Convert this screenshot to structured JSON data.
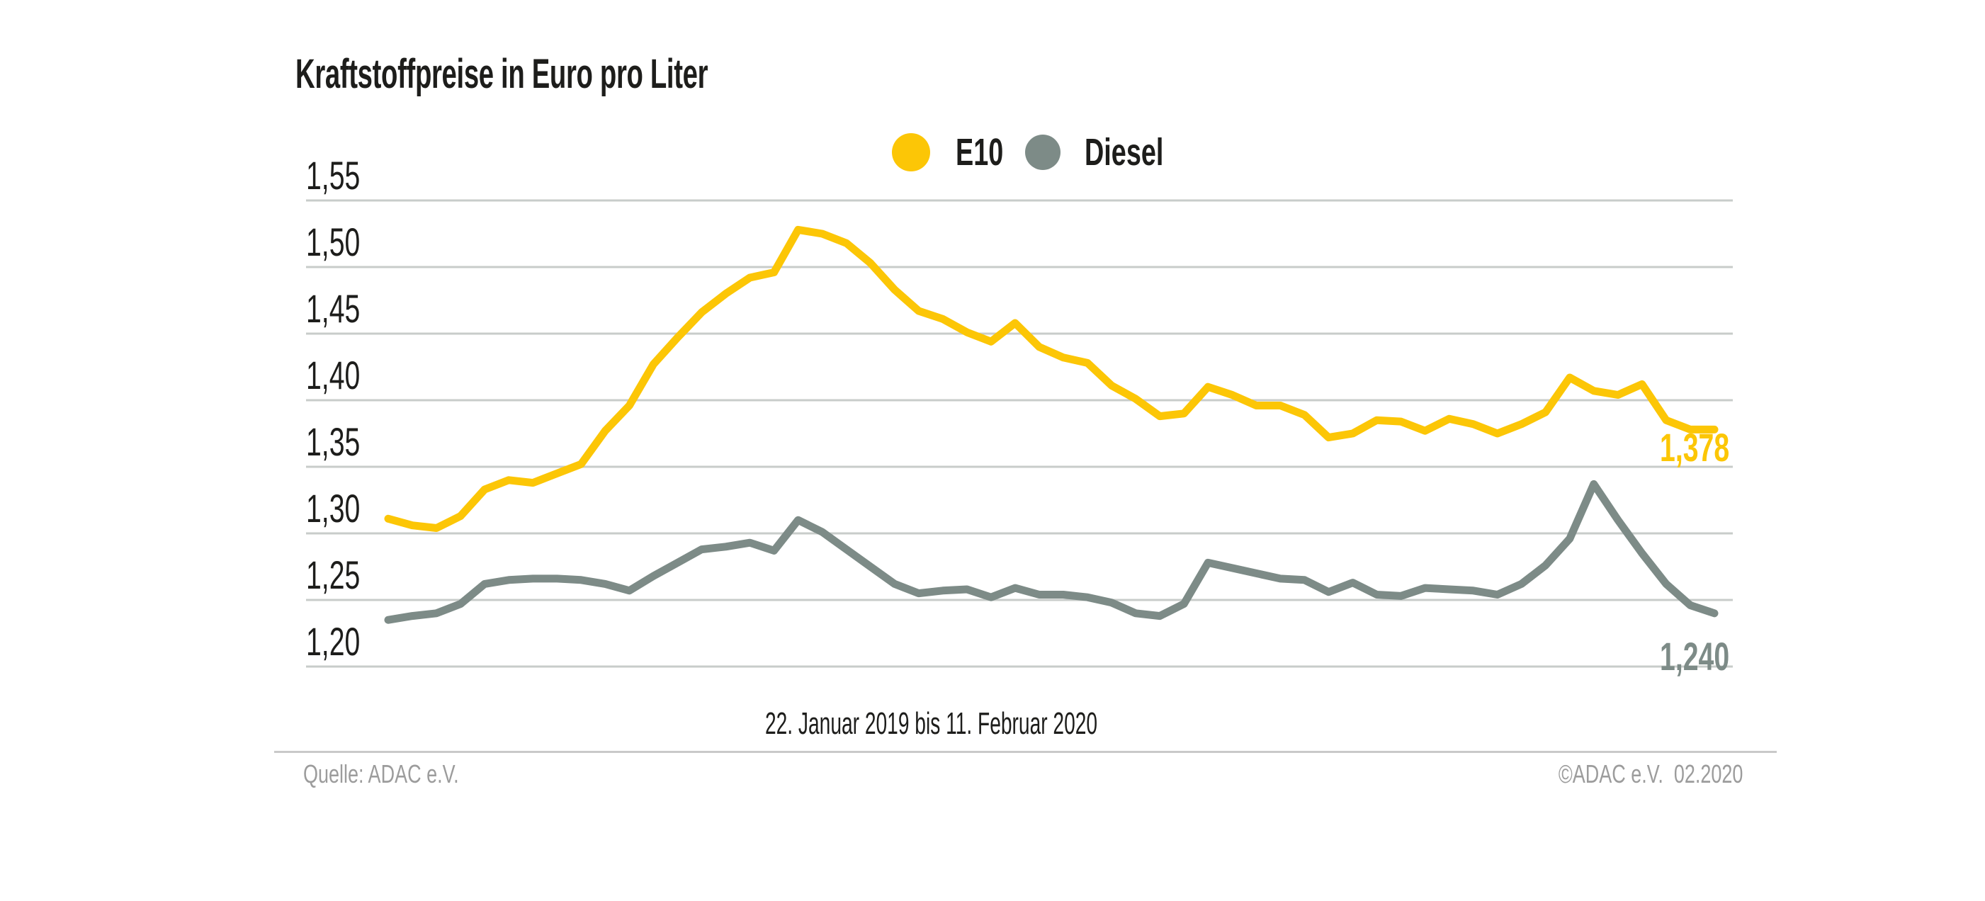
{
  "title": "Kraftstoffpreise in Euro pro Liter",
  "chart_data": {
    "type": "line",
    "title": "Kraftstoffpreise in Euro pro Liter",
    "x_caption": "22. Januar 2019 bis 11. Februar 2020",
    "x_interval": "weekly",
    "ylabel": "Euro pro Liter",
    "ylim": [
      1.185,
      1.57
    ],
    "y_ticks": [
      "1,55",
      "1,50",
      "1,45",
      "1,40",
      "1,35",
      "1,30",
      "1,25",
      "1,20"
    ],
    "y_tick_values": [
      1.55,
      1.5,
      1.45,
      1.4,
      1.35,
      1.3,
      1.25,
      1.2
    ],
    "grid": true,
    "legend_position": "top-center",
    "colors": {
      "e10": "#FCC606",
      "diesel": "#7D8B87",
      "gridline": "#C8CCCA",
      "text": "#1D1D1B",
      "footer_text": "#9C9C9C"
    },
    "series": [
      {
        "name": "E10",
        "color": "#FCC606",
        "end_label": "1,378",
        "end_value": 1.378,
        "values": [
          1.311,
          1.306,
          1.304,
          1.313,
          1.333,
          1.34,
          1.338,
          1.345,
          1.352,
          1.377,
          1.396,
          1.427,
          1.447,
          1.466,
          1.48,
          1.492,
          1.496,
          1.528,
          1.525,
          1.518,
          1.503,
          1.483,
          1.467,
          1.461,
          1.451,
          1.444,
          1.458,
          1.44,
          1.432,
          1.428,
          1.411,
          1.401,
          1.388,
          1.39,
          1.41,
          1.404,
          1.396,
          1.396,
          1.389,
          1.372,
          1.375,
          1.385,
          1.384,
          1.377,
          1.386,
          1.382,
          1.375,
          1.382,
          1.391,
          1.417,
          1.407,
          1.404,
          1.412,
          1.385,
          1.378,
          1.378
        ]
      },
      {
        "name": "Diesel",
        "color": "#7D8B87",
        "end_label": "1,240",
        "end_value": 1.24,
        "values": [
          1.235,
          1.238,
          1.24,
          1.247,
          1.262,
          1.265,
          1.266,
          1.266,
          1.265,
          1.262,
          1.257,
          1.268,
          1.278,
          1.288,
          1.29,
          1.293,
          1.287,
          1.31,
          1.301,
          1.288,
          1.275,
          1.262,
          1.255,
          1.257,
          1.258,
          1.252,
          1.259,
          1.254,
          1.254,
          1.252,
          1.248,
          1.24,
          1.238,
          1.247,
          1.278,
          1.274,
          1.27,
          1.266,
          1.265,
          1.256,
          1.263,
          1.254,
          1.253,
          1.259,
          1.258,
          1.257,
          1.254,
          1.262,
          1.276,
          1.296,
          1.337,
          1.31,
          1.285,
          1.262,
          1.246,
          1.24
        ]
      }
    ]
  },
  "footer": {
    "source": "Quelle: ADAC e.V.",
    "copyright": "©ADAC e.V.  02.2020"
  }
}
